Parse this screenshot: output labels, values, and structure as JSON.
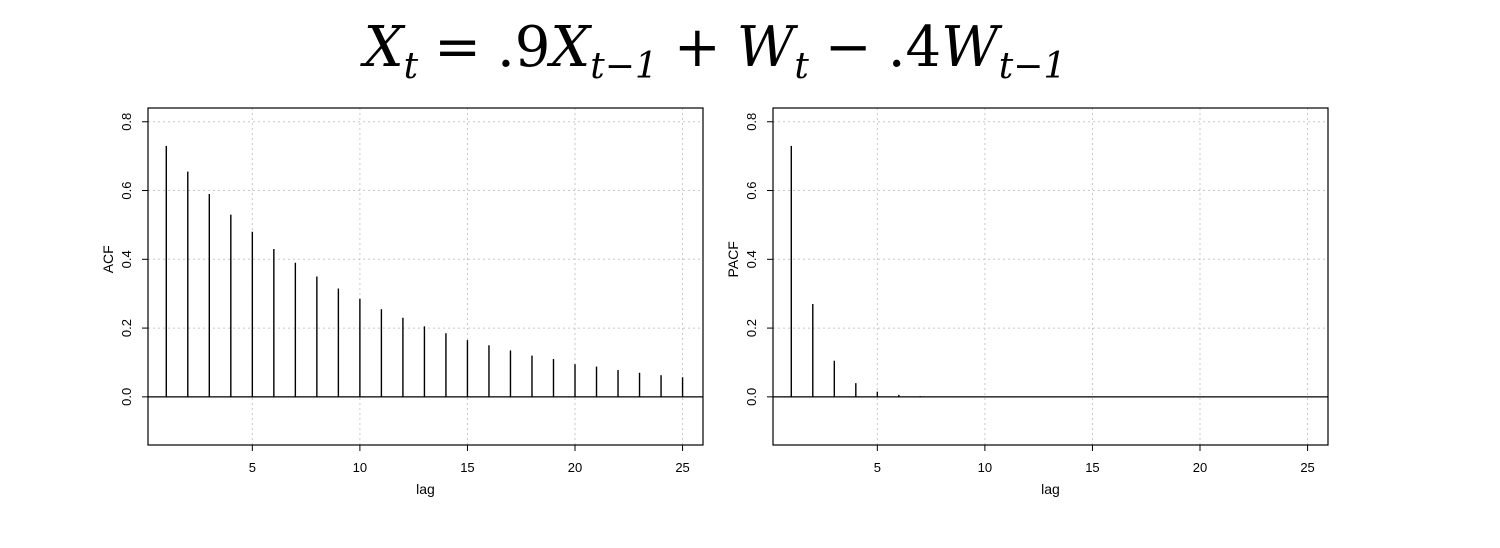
{
  "title": {
    "parts": [
      {
        "t": "X",
        "k": "var"
      },
      {
        "t": "t",
        "k": "sub"
      },
      {
        "t": "=",
        "k": "op"
      },
      {
        "t": ".9",
        "k": "num"
      },
      {
        "t": "X",
        "k": "var"
      },
      {
        "t": "t−1",
        "k": "sub"
      },
      {
        "t": "+",
        "k": "op"
      },
      {
        "t": "W",
        "k": "var"
      },
      {
        "t": "t",
        "k": "sub"
      },
      {
        "t": "−",
        "k": "op"
      },
      {
        "t": ".4",
        "k": "num"
      },
      {
        "t": "W",
        "k": "var"
      },
      {
        "t": "t−1",
        "k": "sub"
      }
    ]
  },
  "chart_data": [
    {
      "type": "bar",
      "xlabel": "lag",
      "ylabel": "ACF",
      "xlim": [
        0.15,
        25.95
      ],
      "ylim": [
        -0.14,
        0.84
      ],
      "xticks": [
        "5",
        "10",
        "15",
        "20",
        "25"
      ],
      "yticks": [
        "0.0",
        "0.2",
        "0.4",
        "0.6",
        "0.8"
      ],
      "grid": true,
      "lags": [
        1,
        2,
        3,
        4,
        5,
        6,
        7,
        8,
        9,
        10,
        11,
        12,
        13,
        14,
        15,
        16,
        17,
        18,
        19,
        20,
        21,
        22,
        23,
        24,
        25
      ],
      "values": [
        0.73,
        0.655,
        0.59,
        0.53,
        0.48,
        0.43,
        0.39,
        0.35,
        0.315,
        0.285,
        0.255,
        0.23,
        0.205,
        0.185,
        0.165,
        0.15,
        0.135,
        0.12,
        0.11,
        0.095,
        0.088,
        0.078,
        0.07,
        0.063,
        0.057
      ]
    },
    {
      "type": "bar",
      "xlabel": "lag",
      "ylabel": "PACF",
      "xlim": [
        0.15,
        25.95
      ],
      "ylim": [
        -0.14,
        0.84
      ],
      "xticks": [
        "5",
        "10",
        "15",
        "20",
        "25"
      ],
      "yticks": [
        "0.0",
        "0.2",
        "0.4",
        "0.6",
        "0.8"
      ],
      "grid": true,
      "lags": [
        1,
        2,
        3,
        4,
        5,
        6,
        7,
        8,
        9,
        10,
        11,
        12,
        13,
        14,
        15,
        16,
        17,
        18,
        19,
        20,
        21,
        22,
        23,
        24,
        25
      ],
      "values": [
        0.73,
        0.27,
        0.105,
        0.04,
        0.015,
        0.006,
        0.002,
        0.001,
        0.0,
        0.0,
        0.0,
        0.0,
        0.0,
        0.0,
        0.0,
        0.0,
        0.0,
        0.0,
        0.0,
        0.0,
        0.0,
        0.0,
        0.0,
        0.0,
        0.0
      ]
    }
  ]
}
